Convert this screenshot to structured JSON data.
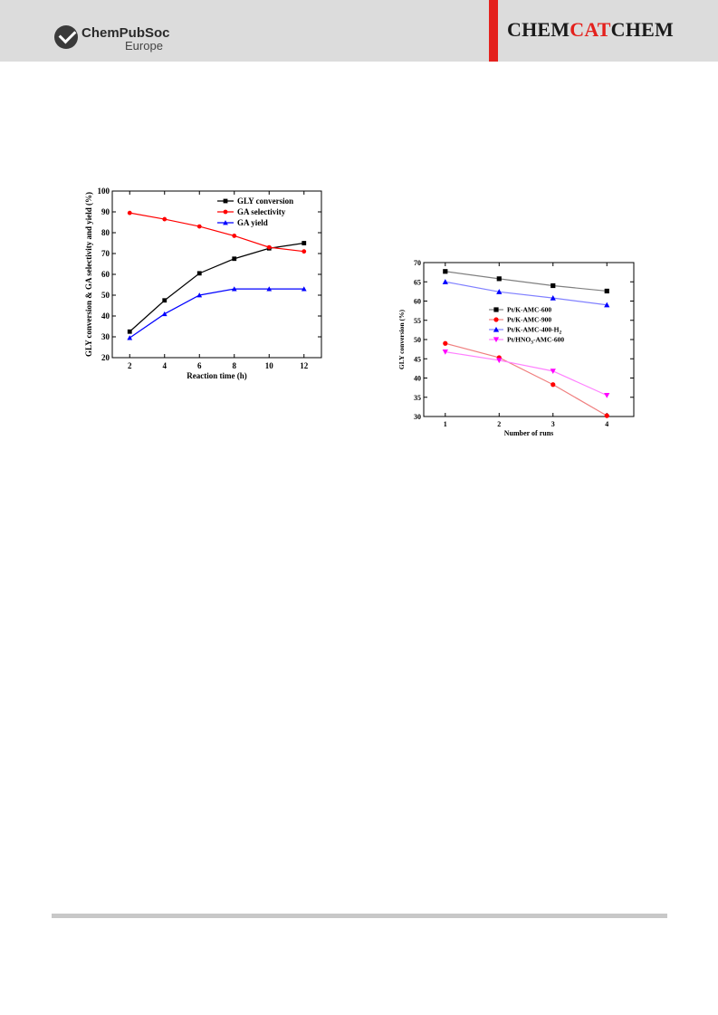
{
  "header": {
    "logo_text": "ChemPubSoc",
    "logo_sub": "Europe",
    "journal": {
      "part1": "CHEM",
      "part2": "CAT",
      "part3": "CHEM"
    }
  },
  "chart_data": [
    {
      "type": "line",
      "title": "",
      "xlabel": "Reaction time (h)",
      "ylabel": "GLY conversion & GA selectivity and yield (%)",
      "x": [
        2,
        4,
        6,
        8,
        10,
        12
      ],
      "xticks": [
        "2",
        "4",
        "6",
        "8",
        "10",
        "12"
      ],
      "yticks": [
        "20",
        "30",
        "40",
        "50",
        "60",
        "70",
        "80",
        "90",
        "100"
      ],
      "xlim": [
        1,
        13
      ],
      "ylim": [
        20,
        100
      ],
      "grid": false,
      "legend_position": "top-right",
      "series": [
        {
          "name": "GLY conversion",
          "values": [
            32.5,
            47.5,
            60.5,
            67.5,
            72.5,
            75
          ],
          "color": "#000000",
          "marker": "square"
        },
        {
          "name": "GA selectivity",
          "values": [
            89.5,
            86.5,
            83,
            78.5,
            73,
            71
          ],
          "color": "#ff0000",
          "marker": "circle"
        },
        {
          "name": "GA yield",
          "values": [
            29.5,
            41,
            50,
            53,
            53,
            53
          ],
          "color": "#0000ff",
          "marker": "triangle-up"
        }
      ]
    },
    {
      "type": "line",
      "title": "",
      "xlabel": "Number of runs",
      "ylabel": "GLY conversion (%)",
      "x": [
        1,
        2,
        3,
        4
      ],
      "xticks": [
        "1",
        "2",
        "3",
        "4"
      ],
      "yticks": [
        "30",
        "35",
        "40",
        "45",
        "50",
        "55",
        "60",
        "65",
        "70"
      ],
      "xlim": [
        0.6,
        4.5
      ],
      "ylim": [
        30,
        70
      ],
      "grid": false,
      "legend_position": "center",
      "series": [
        {
          "name": "Pt/K-AMC-600",
          "values": [
            67.7,
            65.8,
            64.0,
            62.6
          ],
          "color": "#000000",
          "line_color": "#808080",
          "marker": "square"
        },
        {
          "name": "Pt/K-AMC-900",
          "values": [
            49.0,
            45.3,
            38.3,
            30.2
          ],
          "color": "#ff0000",
          "line_color": "#f08080",
          "marker": "circle"
        },
        {
          "name": "Pt/K-AMC-400-H",
          "name_subscript": "2",
          "values": [
            65.0,
            62.4,
            60.8,
            59.0
          ],
          "color": "#0000ff",
          "line_color": "#8080ff",
          "marker": "triangle-up"
        },
        {
          "name": "Pt/HNO",
          "name_subscript": "3",
          "name_suffix": "-AMC-600",
          "values": [
            46.8,
            44.6,
            41.8,
            35.5
          ],
          "color": "#ff00ff",
          "line_color": "#ff80ff",
          "marker": "triangle-down"
        }
      ]
    }
  ]
}
